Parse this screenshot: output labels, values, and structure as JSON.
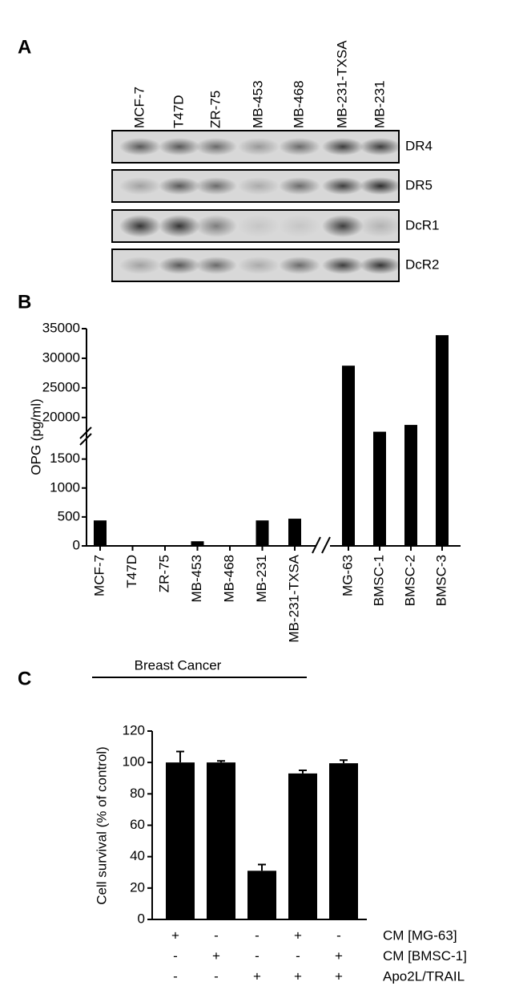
{
  "blot": {
    "panel": "A",
    "lanes": [
      "MCF-7",
      "T47D",
      "ZR-75",
      "MB-453",
      "MB-468",
      "MB-231-TXSA",
      "MB-231"
    ],
    "bands": [
      "DR4",
      "DR5",
      "DcR1",
      "DcR2"
    ]
  },
  "chart_data": [
    {
      "type": "bar",
      "panel": "B",
      "ylabel": "OPG (pg/ml)",
      "categories": [
        "MCF-7",
        "T47D",
        "ZR-75",
        "MB-453",
        "MB-468",
        "MB-231",
        "MB-231-TXSA",
        "MG-63",
        "BMSC-1",
        "BMSC-2",
        "BMSC-3"
      ],
      "values": [
        440,
        0,
        0,
        80,
        0,
        440,
        470,
        28750,
        17600,
        18750,
        33900
      ],
      "color": "#000000",
      "ylim": [
        0,
        35000
      ],
      "axis_break": [
        1800,
        17000
      ],
      "yticks": [
        0,
        500,
        1000,
        1500,
        20000,
        25000,
        30000,
        35000
      ],
      "group_label": "Breast Cancer"
    },
    {
      "type": "bar_error",
      "panel": "C",
      "ylabel": "Cell survival (% of control)",
      "values": [
        100,
        100,
        31,
        93,
        99.5
      ],
      "errors": [
        7,
        1,
        4,
        2,
        2
      ],
      "color": "#000000",
      "ylim": [
        0,
        120
      ],
      "yticks": [
        0,
        20,
        40,
        60,
        80,
        100,
        120
      ],
      "conditions": [
        {
          "label": "CM [MG-63]",
          "signs": [
            "+",
            "-",
            "-",
            "+",
            "-"
          ]
        },
        {
          "label": "CM [BMSC-1]",
          "signs": [
            "-",
            "+",
            "-",
            "-",
            "+"
          ]
        },
        {
          "label": "Apo2L/TRAIL",
          "signs": [
            "-",
            "-",
            "+",
            "+",
            "+"
          ]
        }
      ]
    }
  ]
}
